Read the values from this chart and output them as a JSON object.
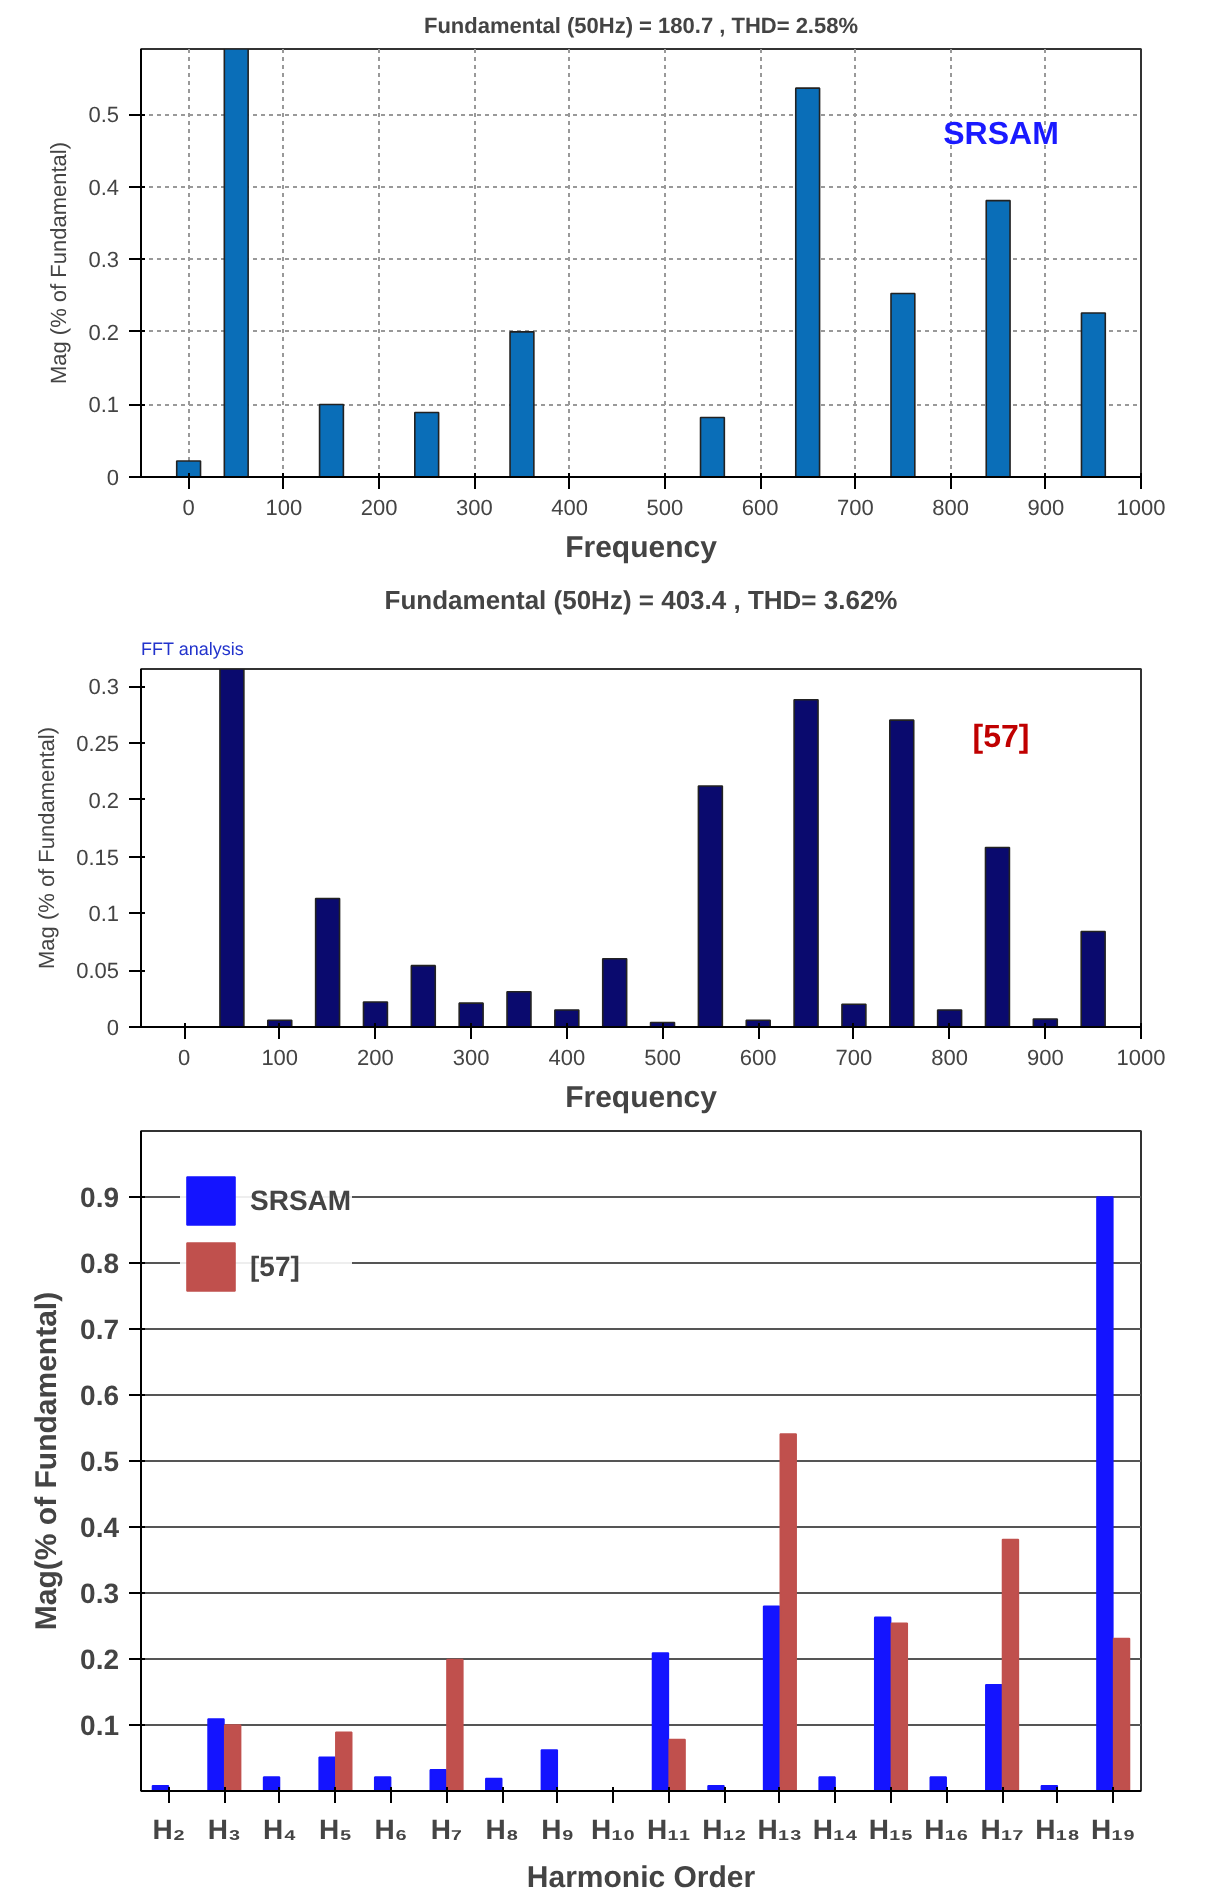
{
  "chart_data": [
    {
      "type": "bar",
      "title": "Fundamental (50Hz) = 180.7 , THD= 2.58%",
      "xlabel": "Frequency",
      "ylabel": "Mag (% of Fundamental)",
      "annotations": [
        "SRSAM"
      ],
      "x": [
        0,
        50,
        150,
        250,
        350,
        550,
        650,
        750,
        850,
        950
      ],
      "series": [
        {
          "color": "#0a6eb8",
          "values": [
            0.022,
            0.59,
            0.1,
            0.089,
            0.2,
            0.082,
            0.536,
            0.253,
            0.381,
            0.226
          ]
        }
      ],
      "xlim": [
        -50,
        1000
      ],
      "xticks": [
        0,
        100,
        200,
        300,
        400,
        500,
        600,
        700,
        800,
        900,
        1000
      ],
      "ylim": [
        0,
        0.59
      ],
      "yticks": [
        0,
        0.1,
        0.2,
        0.3,
        0.4,
        0.5
      ],
      "grid": true,
      "legend": false
    },
    {
      "type": "bar",
      "title": "Fundamental (50Hz) = 403.4 , THD= 3.62%",
      "xlabel": "Frequency",
      "ylabel": "Mag (% of Fundamental)",
      "annotations": [
        "FFT analysis",
        "[57]"
      ],
      "x": [
        50,
        100,
        150,
        200,
        250,
        300,
        350,
        400,
        450,
        500,
        550,
        600,
        650,
        700,
        750,
        800,
        850,
        900,
        950
      ],
      "series": [
        {
          "color": "#0a0a6e",
          "values": [
            0.315,
            0.006,
            0.113,
            0.022,
            0.054,
            0.021,
            0.031,
            0.015,
            0.06,
            0.004,
            0.212,
            0.006,
            0.288,
            0.02,
            0.27,
            0.015,
            0.158,
            0.007,
            0.084
          ]
        }
      ],
      "xlim": [
        -45,
        1000
      ],
      "xticks": [
        0,
        100,
        200,
        300,
        400,
        500,
        600,
        700,
        800,
        900,
        1000
      ],
      "ylim": [
        0,
        0.315
      ],
      "yticks": [
        0,
        0.05,
        0.1,
        0.15,
        0.2,
        0.25,
        0.3
      ],
      "grid": false,
      "legend": false
    },
    {
      "type": "bar",
      "xlabel": "Harmonic Order",
      "ylabel": "Mag(% of Fundamental)",
      "categories": [
        "H₂",
        "H₃",
        "H₄",
        "H₅",
        "H₆",
        "H₇",
        "H₈",
        "H₉",
        "H₁₀",
        "H₁₁",
        "H₁₂",
        "H₁₃",
        "H₁₄",
        "H₁₅",
        "H₁₆",
        "H₁₇",
        "H₁₈",
        "H₁₉"
      ],
      "series": [
        {
          "name": "SRSAM",
          "color": "#1414ff",
          "values": [
            0.008,
            0.109,
            0.021,
            0.051,
            0.021,
            0.032,
            0.019,
            0.062,
            null,
            0.209,
            0.008,
            0.28,
            0.021,
            0.263,
            0.021,
            0.161,
            0.008,
            0.9
          ]
        },
        {
          "name": "[57]",
          "color": "#c0504d",
          "values": [
            null,
            0.1,
            null,
            0.089,
            null,
            0.199,
            null,
            null,
            null,
            0.078,
            null,
            0.541,
            null,
            0.254,
            null,
            0.381,
            null,
            0.231
          ]
        }
      ],
      "ylim": [
        0,
        1
      ],
      "yticks": [
        0.1,
        0.2,
        0.3,
        0.4,
        0.5,
        0.6,
        0.7,
        0.8,
        0.9
      ],
      "grid": "y",
      "legend": "top left"
    }
  ]
}
